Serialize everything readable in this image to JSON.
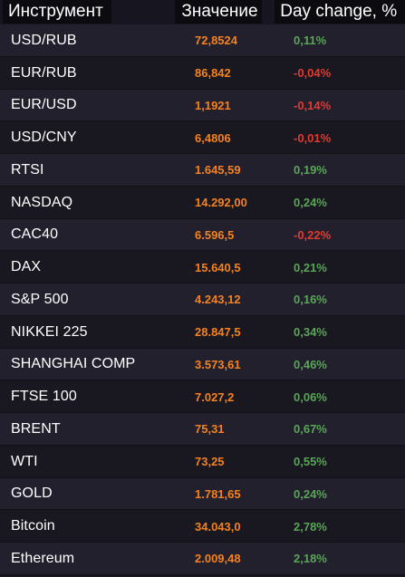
{
  "header": {
    "instrument": "Инструмент",
    "value": "Значение",
    "change": "Day change, %"
  },
  "colors": {
    "value": "#f5821f",
    "positive": "#58a656",
    "negative": "#e33a2f"
  },
  "rows": [
    {
      "name": "USD/RUB",
      "value": "72,8524",
      "change": "0,11%",
      "dir": "up"
    },
    {
      "name": "EUR/RUB",
      "value": "86,842",
      "change": "-0,04%",
      "dir": "down"
    },
    {
      "name": "EUR/USD",
      "value": "1,1921",
      "change": "-0,14%",
      "dir": "down"
    },
    {
      "name": "USD/CNY",
      "value": "6,4806",
      "change": "-0,01%",
      "dir": "down"
    },
    {
      "name": "RTSI",
      "value": "1.645,59",
      "change": "0,19%",
      "dir": "up"
    },
    {
      "name": "NASDAQ",
      "value": "14.292,00",
      "change": "0,24%",
      "dir": "up"
    },
    {
      "name": "CAC40",
      "value": "6.596,5",
      "change": "-0,22%",
      "dir": "down"
    },
    {
      "name": "DAX",
      "value": "15.640,5",
      "change": "0,21%",
      "dir": "up"
    },
    {
      "name": "S&P 500",
      "value": "4.243,12",
      "change": "0,16%",
      "dir": "up"
    },
    {
      "name": "NIKKEI 225",
      "value": "28.847,5",
      "change": "0,34%",
      "dir": "up"
    },
    {
      "name": "SHANGHAI COMP",
      "value": "3.573,61",
      "change": "0,46%",
      "dir": "up"
    },
    {
      "name": "FTSE 100",
      "value": "7.027,2",
      "change": "0,06%",
      "dir": "up"
    },
    {
      "name": "BRENT",
      "value": "75,31",
      "change": "0,67%",
      "dir": "up"
    },
    {
      "name": "WTI",
      "value": "73,25",
      "change": "0,55%",
      "dir": "up"
    },
    {
      "name": "GOLD",
      "value": "1.781,65",
      "change": "0,24%",
      "dir": "up"
    },
    {
      "name": "Bitcoin",
      "value": "34.043,0",
      "change": "2,78%",
      "dir": "up"
    },
    {
      "name": "Ethereum",
      "value": "2.009,48",
      "change": "2,18%",
      "dir": "up"
    }
  ]
}
